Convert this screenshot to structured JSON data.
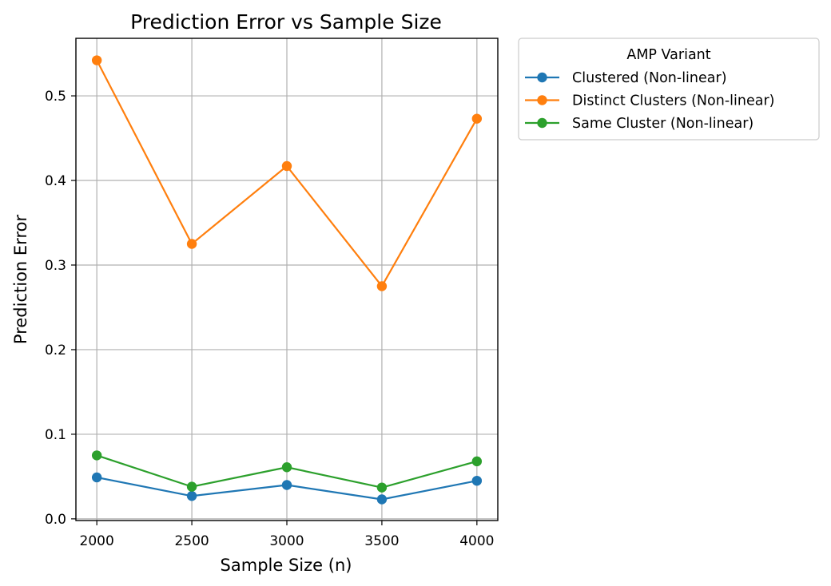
{
  "chart_data": {
    "type": "line",
    "title": "Prediction Error vs Sample Size",
    "xlabel": "Sample Size (n)",
    "ylabel": "Prediction Error",
    "x": [
      2000,
      2500,
      3000,
      3500,
      4000
    ],
    "xlim": [
      1890,
      4110
    ],
    "ylim": [
      -0.002,
      0.568
    ],
    "xticks": [
      "2000",
      "2500",
      "3000",
      "3500",
      "4000"
    ],
    "yticks": [
      "0.0",
      "0.1",
      "0.2",
      "0.3",
      "0.4",
      "0.5"
    ],
    "grid": true,
    "legend": {
      "title": "AMP Variant",
      "placement": "outside-upper-right"
    },
    "series": [
      {
        "name": "Clustered (Non-linear)",
        "color": "#1f77b4",
        "values": [
          0.049,
          0.027,
          0.04,
          0.023,
          0.045
        ]
      },
      {
        "name": "Distinct Clusters (Non-linear)",
        "color": "#ff7f0e",
        "values": [
          0.542,
          0.325,
          0.417,
          0.275,
          0.473
        ]
      },
      {
        "name": "Same Cluster (Non-linear)",
        "color": "#2ca02c",
        "values": [
          0.075,
          0.038,
          0.061,
          0.037,
          0.068
        ]
      }
    ]
  }
}
